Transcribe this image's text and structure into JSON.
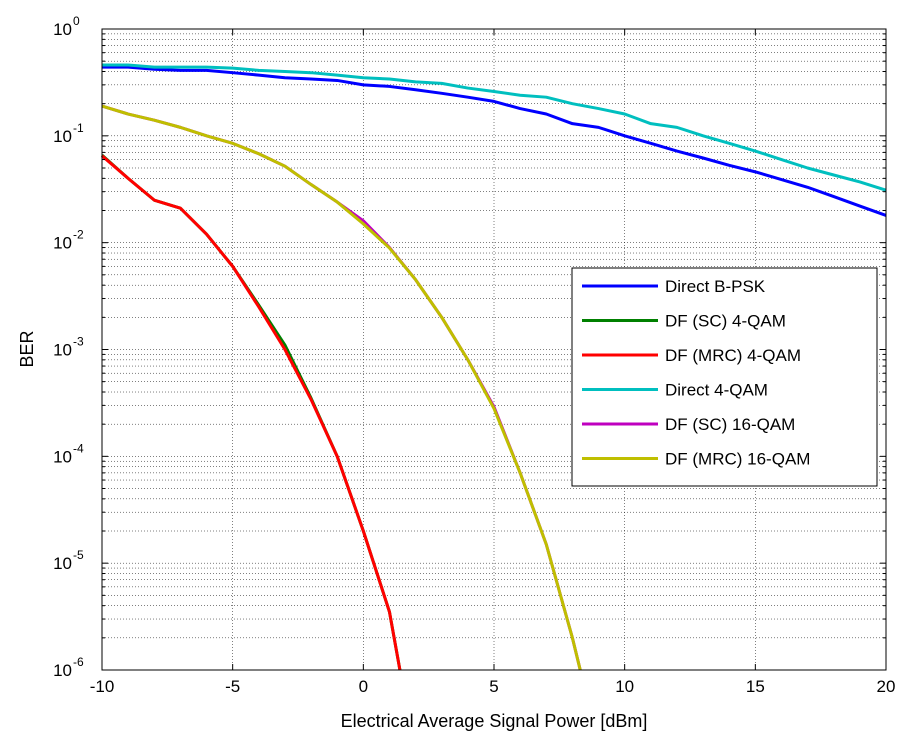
{
  "chart_data": {
    "type": "line",
    "title": "",
    "xlabel": "Electrical Average Signal Power [dBm]",
    "ylabel": "BER",
    "xlim": [
      -10,
      20
    ],
    "ylim": [
      1e-06,
      1
    ],
    "yscale": "log",
    "xticks": [
      -10,
      -5,
      0,
      5,
      10,
      15,
      20
    ],
    "yticks": [
      {
        "base": "10",
        "exp": "0",
        "value": 1
      },
      {
        "base": "10",
        "exp": "-1",
        "value": 0.1
      },
      {
        "base": "10",
        "exp": "-2",
        "value": 0.01
      },
      {
        "base": "10",
        "exp": "-3",
        "value": 0.001
      },
      {
        "base": "10",
        "exp": "-4",
        "value": 0.0001
      },
      {
        "base": "10",
        "exp": "-5",
        "value": 1e-05
      },
      {
        "base": "10",
        "exp": "-6",
        "value": 1e-06
      }
    ],
    "grid": true,
    "legend_position": "center-right",
    "series": [
      {
        "name": "Direct B-PSK",
        "color": "#0000ff",
        "x": [
          -10,
          -9,
          -8,
          -7,
          -6,
          -5,
          -4,
          -3,
          -2,
          -1,
          0,
          1,
          2,
          3,
          4,
          5,
          6,
          7,
          8,
          9,
          10,
          11,
          12,
          13,
          14,
          15,
          16,
          17,
          18,
          19,
          20
        ],
        "y": [
          0.44,
          0.44,
          0.42,
          0.41,
          0.41,
          0.39,
          0.37,
          0.35,
          0.34,
          0.33,
          0.3,
          0.29,
          0.27,
          0.25,
          0.23,
          0.21,
          0.18,
          0.16,
          0.13,
          0.12,
          0.1,
          0.085,
          0.072,
          0.062,
          0.053,
          0.046,
          0.039,
          0.033,
          0.027,
          0.022,
          0.018
        ]
      },
      {
        "name": "DF (SC) 4-QAM",
        "color": "#008000",
        "x": [
          -10,
          -9,
          -8,
          -7,
          -6,
          -5,
          -4,
          -3,
          -2,
          -1,
          0,
          1,
          1.4
        ],
        "y": [
          0.066,
          0.04,
          0.025,
          0.021,
          0.012,
          0.006,
          0.0026,
          0.0011,
          0.00035,
          0.0001,
          2e-05,
          3.5e-06,
          1e-06
        ]
      },
      {
        "name": "DF (MRC) 4-QAM",
        "color": "#ff0000",
        "x": [
          -10,
          -9,
          -8,
          -7,
          -6,
          -5,
          -4,
          -3,
          -2,
          -1,
          0,
          1,
          1.4
        ],
        "y": [
          0.065,
          0.04,
          0.025,
          0.021,
          0.012,
          0.006,
          0.0025,
          0.001,
          0.00034,
          0.0001,
          2e-05,
          3.5e-06,
          1e-06
        ]
      },
      {
        "name": "Direct 4-QAM",
        "color": "#00bfbf",
        "x": [
          -10,
          -9,
          -8,
          -7,
          -6,
          -5,
          -4,
          -3,
          -2,
          -1,
          0,
          1,
          2,
          3,
          4,
          5,
          6,
          7,
          8,
          9,
          10,
          11,
          12,
          13,
          14,
          15,
          16,
          17,
          18,
          19,
          20
        ],
        "y": [
          0.46,
          0.46,
          0.44,
          0.44,
          0.44,
          0.43,
          0.41,
          0.4,
          0.39,
          0.37,
          0.35,
          0.34,
          0.32,
          0.31,
          0.28,
          0.26,
          0.24,
          0.23,
          0.2,
          0.18,
          0.16,
          0.13,
          0.12,
          0.1,
          0.085,
          0.072,
          0.06,
          0.05,
          0.043,
          0.037,
          0.031
        ]
      },
      {
        "name": "DF (SC) 16-QAM",
        "color": "#bf00bf",
        "x": [
          -10,
          -9,
          -8,
          -7,
          -6,
          -5,
          -4,
          -3,
          -2,
          -1,
          0,
          1,
          2,
          3,
          4,
          5,
          6,
          7,
          8,
          8.3
        ],
        "y": [
          0.19,
          0.16,
          0.14,
          0.12,
          0.1,
          0.085,
          0.068,
          0.052,
          0.035,
          0.024,
          0.016,
          0.009,
          0.0045,
          0.002,
          0.0008,
          0.00029,
          7e-05,
          1.5e-05,
          2e-06,
          1e-06
        ]
      },
      {
        "name": "DF (MRC) 16-QAM",
        "color": "#bfbf00",
        "x": [
          -10,
          -9,
          -8,
          -7,
          -6,
          -5,
          -4,
          -3,
          -2,
          -1,
          0,
          1,
          2,
          3,
          4,
          5,
          6,
          7,
          8,
          8.3
        ],
        "y": [
          0.19,
          0.16,
          0.14,
          0.12,
          0.1,
          0.085,
          0.068,
          0.052,
          0.035,
          0.024,
          0.015,
          0.0089,
          0.0045,
          0.002,
          0.0008,
          0.00028,
          7e-05,
          1.5e-05,
          2e-06,
          1e-06
        ]
      }
    ]
  }
}
